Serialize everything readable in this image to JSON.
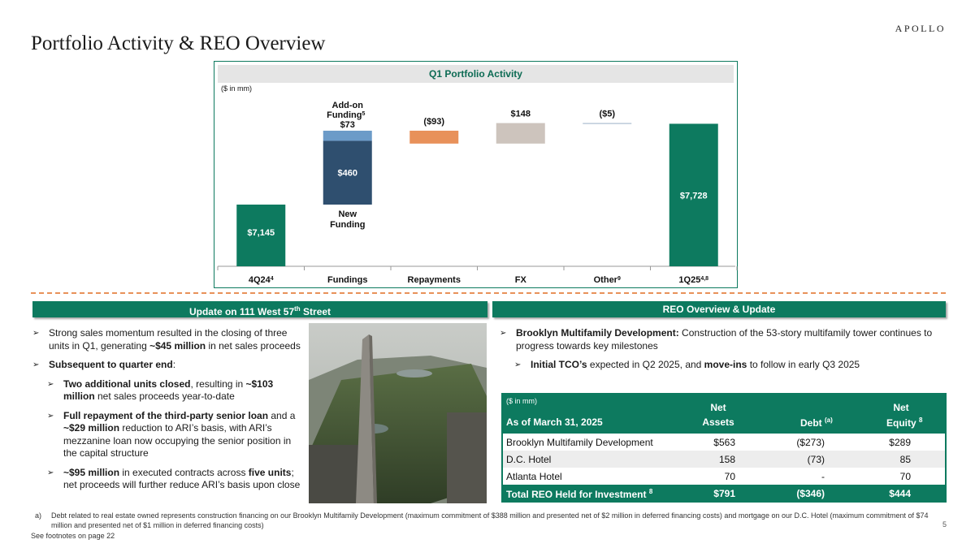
{
  "header": {
    "title": "Portfolio Activity & REO Overview",
    "logo": "APOLLO"
  },
  "chart": {
    "title": "Q1 Portfolio Activity",
    "unit": "($ in mm)"
  },
  "chart_data": {
    "type": "bar",
    "subtype": "waterfall",
    "title": "Q1 Portfolio Activity",
    "units": "($ in mm)",
    "categories": [
      "4Q24",
      "Fundings",
      "Repayments",
      "FX",
      "Other",
      "1Q25"
    ],
    "category_superscripts": [
      "4",
      "",
      "",
      "",
      "9",
      "4,8"
    ],
    "steps": [
      {
        "category": "4Q24",
        "kind": "total",
        "value": 7145,
        "label": "$7,145",
        "color": "#0d7a5f"
      },
      {
        "category": "Fundings",
        "kind": "increase",
        "name": "New Funding",
        "value": 460,
        "label": "$460",
        "color": "#2f4f6f"
      },
      {
        "category": "Fundings",
        "kind": "increase",
        "name": "Add-on Funding",
        "name_superscript": "5",
        "value": 73,
        "label": "$73",
        "color": "#6c9bc8"
      },
      {
        "category": "Repayments",
        "kind": "decrease",
        "value": -93,
        "label": "($93)",
        "color": "#e8915a"
      },
      {
        "category": "FX",
        "kind": "increase",
        "value": 148,
        "label": "$148",
        "color": "#cdc4bd"
      },
      {
        "category": "Other",
        "kind": "decrease",
        "value": -5,
        "label": "($5)",
        "color": "#9ab0c6"
      },
      {
        "category": "1Q25",
        "kind": "total",
        "value": 7728,
        "label": "$7,728",
        "color": "#0d7a5f"
      }
    ],
    "ylim": [
      6700,
      8000
    ],
    "grid": false,
    "legend": "none"
  },
  "left_section": {
    "header": "Update on 111 West 57",
    "header_sup": "th",
    "header_suffix": " Street",
    "bullets": [
      {
        "level": 1,
        "parts": [
          {
            "t": "Strong sales momentum resulted in the closing of three units in Q1, generating "
          },
          {
            "t": "~$45 million",
            "b": true
          },
          {
            "t": " in net sales proceeds"
          }
        ]
      },
      {
        "level": 1,
        "parts": [
          {
            "t": "Subsequent to quarter end",
            "b": true
          },
          {
            "t": ":"
          }
        ]
      },
      {
        "level": 2,
        "parts": [
          {
            "t": "Two additional units closed",
            "b": true
          },
          {
            "t": ", resulting in "
          },
          {
            "t": "~$103 million",
            "b": true
          },
          {
            "t": " net sales proceeds year-to-date"
          }
        ]
      },
      {
        "level": 2,
        "parts": [
          {
            "t": "Full repayment of the third-party senior loan",
            "b": true
          },
          {
            "t": " and a "
          },
          {
            "t": "~$29 million",
            "b": true
          },
          {
            "t": " reduction to ARI’s basis, with ARI’s mezzanine loan now occupying the senior position in the capital structure"
          }
        ]
      },
      {
        "level": 2,
        "parts": [
          {
            "t": "~$95 million",
            "b": true
          },
          {
            "t": " in executed contracts across "
          },
          {
            "t": "five units",
            "b": true
          },
          {
            "t": "; net proceeds will further reduce ARI’s basis upon close"
          }
        ]
      }
    ]
  },
  "right_section": {
    "header": "REO Overview & Update",
    "bullets": [
      {
        "level": 1,
        "parts": [
          {
            "t": "Brooklyn Multifamily Development:",
            "b": true
          },
          {
            "t": " Construction of the 53-story multifamily tower continues to progress towards key milestones"
          }
        ]
      },
      {
        "level": 2,
        "parts": [
          {
            "t": "Initial TCO’s",
            "b": true
          },
          {
            "t": " expected in Q2 2025, and "
          },
          {
            "t": "move-ins",
            "b": true
          },
          {
            "t": " to follow in early Q3 2025"
          }
        ]
      }
    ]
  },
  "reo_table": {
    "unit": "($ in mm)",
    "col_asof": "As of March 31, 2025",
    "col_assets_1": "Net",
    "col_assets_2": "Assets",
    "col_debt": "Debt",
    "col_debt_sup": "(a)",
    "col_equity_1": "Net",
    "col_equity_2": "Equity",
    "col_equity_sup": "8",
    "rows": [
      {
        "name": "Brooklyn Multifamily Development",
        "assets": "$563",
        "debt": "($273)",
        "equity": "$289"
      },
      {
        "name": "D.C. Hotel",
        "assets": "158",
        "debt": "(73)",
        "equity": "85"
      },
      {
        "name": "Atlanta Hotel",
        "assets": "70",
        "debt": "-",
        "equity": "70"
      }
    ],
    "total": {
      "name": "Total REO Held for Investment",
      "sup": "8",
      "assets": "$791",
      "debt": "($346)",
      "equity": "$444"
    }
  },
  "footnotes": {
    "a_letter": "a)",
    "a_text": "Debt related to real estate owned represents construction financing on our Brooklyn Multifamily Development (maximum commitment of $388 million and presented net of $2 million in deferred financing costs) and mortgage on our D.C. Hotel (maximum commitment of $74 million and presented net of $1 million in deferred financing costs)",
    "see": "See footnotes on page 22",
    "page": "5"
  }
}
